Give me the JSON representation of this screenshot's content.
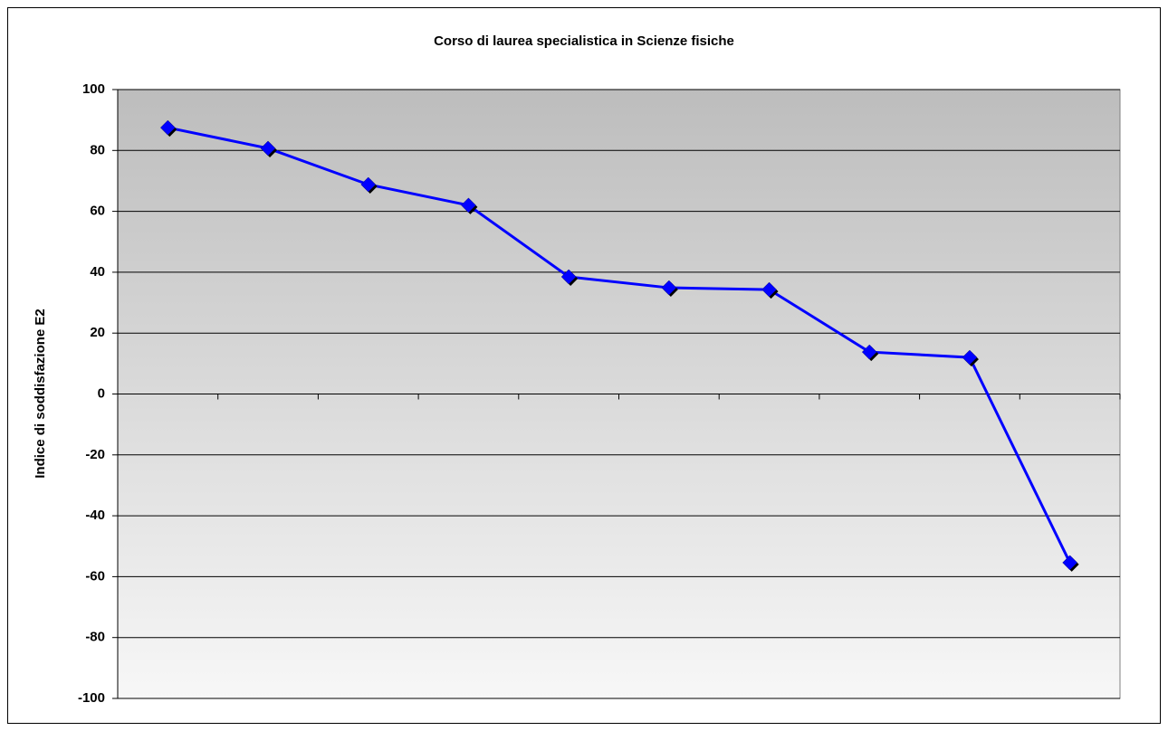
{
  "chart_data": {
    "type": "line",
    "title": "Corso di laurea specialistica in Scienze fisiche",
    "y_label": "Indice di soddisfazione E2",
    "categories": [
      null,
      null,
      null,
      null,
      null,
      null,
      null,
      null,
      null,
      null
    ],
    "values": [
      87.5,
      80.7,
      68.8,
      62.0,
      38.5,
      34.9,
      34.3,
      13.8,
      12.0,
      -55.4
    ],
    "color": "#0000ff",
    "ylim": [
      -100,
      100
    ],
    "yticks": [
      -100,
      -80,
      -60,
      -40,
      -20,
      0,
      20,
      40,
      60,
      80,
      100
    ],
    "grid": true
  }
}
